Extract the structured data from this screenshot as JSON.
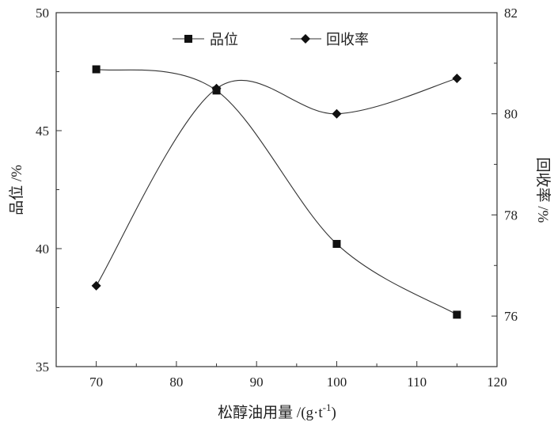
{
  "chart_data": {
    "type": "line",
    "x": [
      70,
      85,
      100,
      115
    ],
    "xlabel_main": "松醇油用量 /(g·t",
    "xlabel_sup": "-1",
    "xlabel_tail": ")",
    "ylabel": "品位 /%",
    "y2label": "回收率 /%",
    "xlim": [
      65,
      120
    ],
    "ylim": [
      35,
      50
    ],
    "y2lim": [
      75,
      82
    ],
    "xticks": [
      70,
      80,
      90,
      100,
      110,
      120
    ],
    "yticks": [
      35,
      40,
      45,
      50
    ],
    "y2ticks": [
      76,
      78,
      80,
      82
    ],
    "legend_position": "top",
    "series": [
      {
        "name": "品位",
        "axis": "left",
        "marker": "square",
        "values": [
          47.6,
          46.7,
          40.2,
          37.2
        ]
      },
      {
        "name": "回收率",
        "axis": "right",
        "marker": "diamond",
        "values": [
          76.6,
          80.5,
          80.0,
          80.7
        ]
      }
    ]
  }
}
